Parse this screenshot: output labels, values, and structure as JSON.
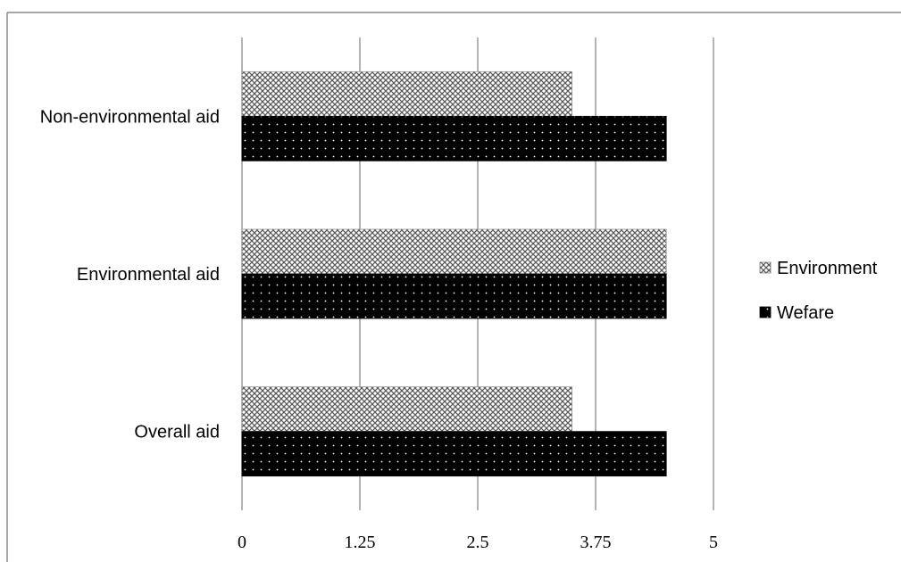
{
  "chart_data": {
    "type": "bar",
    "orientation": "horizontal",
    "categories": [
      "Non-environmental aid",
      "Environmental aid",
      "Overall aid"
    ],
    "series": [
      {
        "name": "Environment",
        "values": [
          3.5,
          4.5,
          3.5
        ],
        "color": "#b8b8b8",
        "pattern": "crosshatch"
      },
      {
        "name": "Wefare",
        "values": [
          4.5,
          4.5,
          4.5
        ],
        "color": "#000000",
        "pattern": "dotted"
      }
    ],
    "x_ticks": [
      "0",
      "1.25",
      "2.5",
      "3.75",
      "5"
    ],
    "xlim": [
      0,
      5
    ],
    "grid": true,
    "legend_position": "right"
  }
}
